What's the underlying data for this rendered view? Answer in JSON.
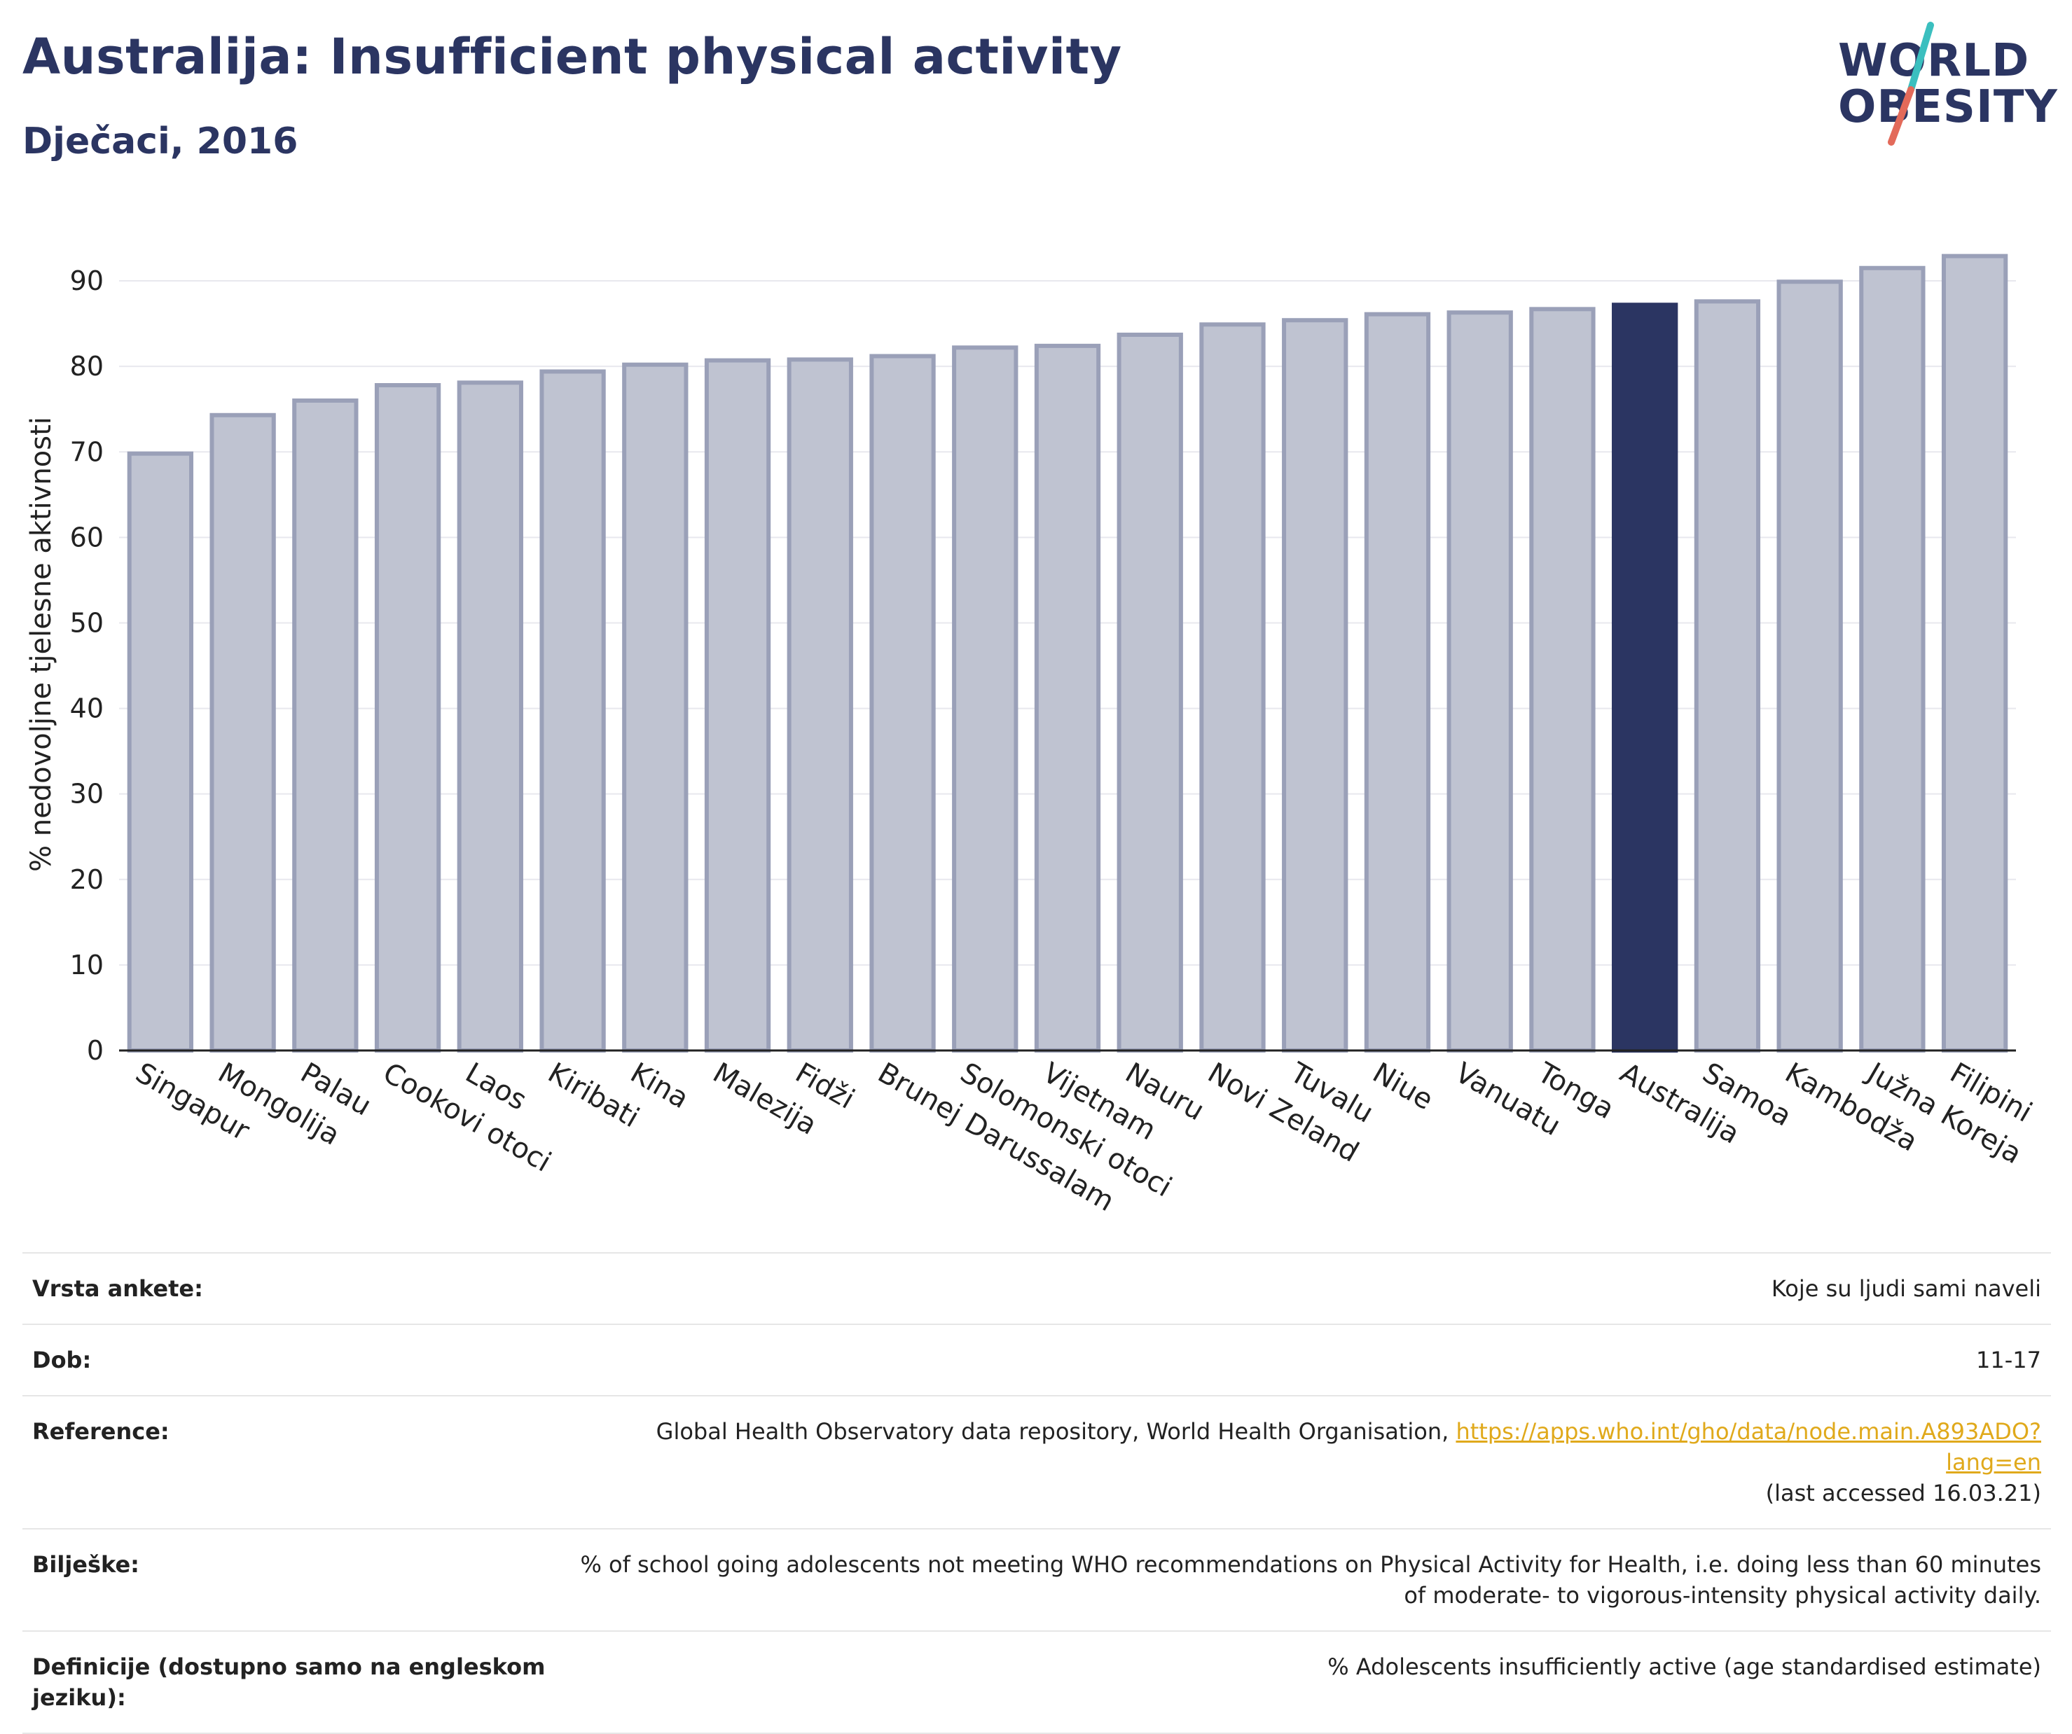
{
  "header": {
    "title": "Australija: Insufficient physical activity",
    "subtitle": "Dječaci, 2016"
  },
  "logo": {
    "line1": "WORLD",
    "line2": "OBESITY",
    "slash_colors": [
      "#3bbfbf",
      "#e36a5a"
    ]
  },
  "colors": {
    "bar": "#bfc3d1",
    "bar_stroke": "#9aa0b8",
    "highlight": "#2b3562",
    "grid": "#e8e8ee"
  },
  "chart_data": {
    "type": "bar",
    "ylabel": "% nedovoljne tjelesne aktivnosti",
    "ylim": [
      0,
      95
    ],
    "yticks": [
      0,
      10,
      20,
      30,
      40,
      50,
      60,
      70,
      80,
      90
    ],
    "grid": true,
    "highlight": "Australija",
    "categories": [
      "Singapur",
      "Mongolija",
      "Palau",
      "Cookovi otoci",
      "Laos",
      "Kiribati",
      "Kina",
      "Malezija",
      "Fidži",
      "Brunej Darussalam",
      "Solomonski otoci",
      "Vijetnam",
      "Nauru",
      "Novi Zeland",
      "Tuvalu",
      "Niue",
      "Vanuatu",
      "Tonga",
      "Australija",
      "Samoa",
      "Kambodža",
      "Južna Koreja",
      "Filipini"
    ],
    "values": [
      69.8,
      74.3,
      76.0,
      77.8,
      78.1,
      79.4,
      80.2,
      80.7,
      80.8,
      81.2,
      82.2,
      82.4,
      83.7,
      84.9,
      85.4,
      86.1,
      86.3,
      86.7,
      87.2,
      87.6,
      89.9,
      91.5,
      92.9
    ]
  },
  "table": {
    "rows": [
      {
        "key": "Vrsta ankete:",
        "value": "Koje su ljudi sami naveli"
      },
      {
        "key": "Dob:",
        "value": "11-17"
      },
      {
        "key": "Reference:",
        "value": "Global Health Observatory data repository, World Health Organisation,",
        "link": "https://apps.who.int/gho/data/node.main.A893ADO?lang=en",
        "note": "(last accessed 16.03.21)"
      },
      {
        "key": "Bilješke:",
        "value": "% of school going adolescents not meeting WHO recommendations on Physical Activity for Health, i.e. doing less than 60 minutes of moderate- to vigorous-intensity physical activity daily."
      },
      {
        "key": "Definicije (dostupno samo na engleskom jeziku):",
        "value": "% Adolescents insufficiently active (age standardised estimate)"
      }
    ]
  }
}
